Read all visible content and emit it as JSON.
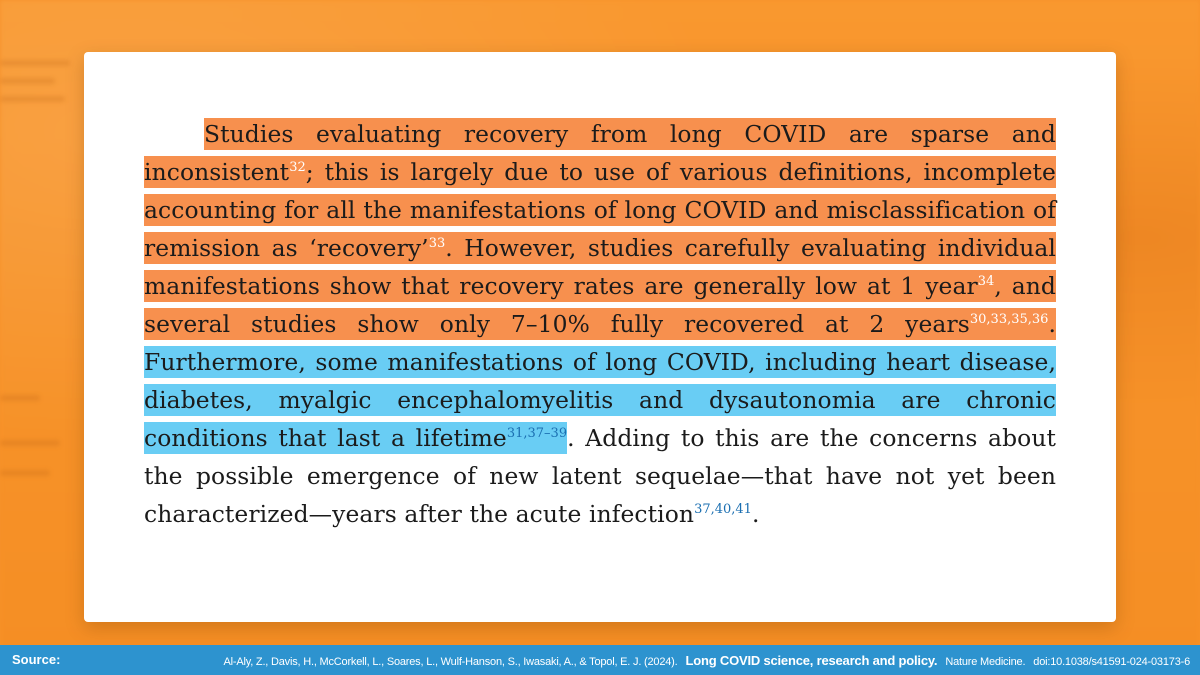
{
  "passage": {
    "s1": "Studies evaluating recovery from long COVID are sparse and inconsistent",
    "r1": "32",
    "s2": "; this is largely due to use of various definitions, incom­plete accounting for all the manifestations of long COVID and mis­classification of remission as ‘recovery’",
    "r2": "33",
    "s3": ". However, studies carefully evaluating individual manifestations show that recovery rates are generally low at 1 year",
    "r3": "34",
    "s4": ", and several studies show only 7–10% fully recovered at 2 years",
    "r4": "30,33,35,36",
    "s5": ". ",
    "s6": "Furthermore, some manifestations of long COVID, including heart disease, diabetes, myalgic encephalomyelitis and dysautonomia are chronic conditions that last a lifetime",
    "r5": "31,37–39",
    "s7": ". Adding to this are the concerns about the possible emergence of new latent sequelae—that have not yet been characterized—years after the acute infection",
    "r6": "37,40,41",
    "s8": "."
  },
  "footer": {
    "label": "Source:",
    "authors": "Al-Aly, Z., Davis, H., McCorkell, L., Soares, L., Wulf-Hanson, S., Iwasaki, A., & Topol, E. J. (2024).",
    "title": "Long COVID science, research and policy.",
    "journal": "Nature Medicine.",
    "doi": "doi:10.1038/s41591-024-03173-6"
  },
  "colors": {
    "background": "#f7912a",
    "highlight_orange": "#f7904e",
    "highlight_blue": "#69cdf4",
    "footer_bar": "#2d93cf",
    "reference": "#1b6fb1"
  }
}
